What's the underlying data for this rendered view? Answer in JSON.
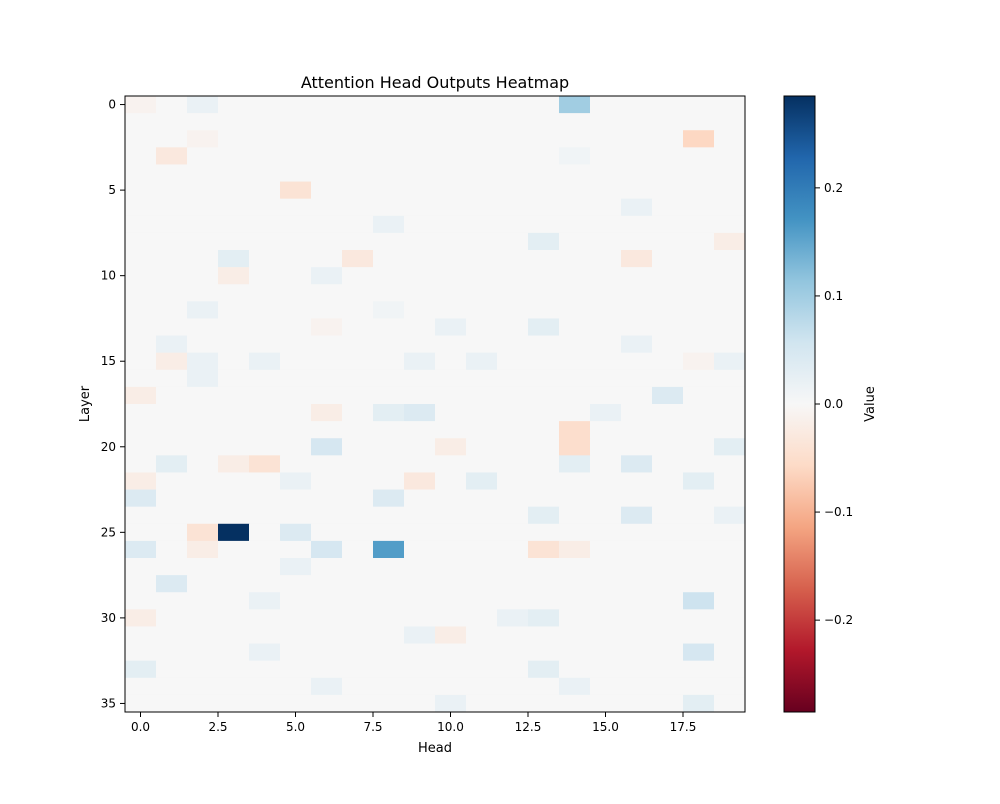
{
  "chart_data": {
    "type": "heatmap",
    "title": "Attention Head Outputs Heatmap",
    "xlabel": "Head",
    "ylabel": "Layer",
    "n_rows": 36,
    "n_cols": 20,
    "xlim": [
      -0.5,
      19.5
    ],
    "ylim": [
      35.5,
      -0.5
    ],
    "x_ticks": [
      0.0,
      2.5,
      5.0,
      7.5,
      10.0,
      12.5,
      15.0,
      17.5
    ],
    "x_tick_labels": [
      "0.0",
      "2.5",
      "5.0",
      "7.5",
      "10.0",
      "12.5",
      "15.0",
      "17.5"
    ],
    "y_ticks": [
      0,
      5,
      10,
      15,
      20,
      25,
      30,
      35
    ],
    "y_tick_labels": [
      "0",
      "5",
      "10",
      "15",
      "20",
      "25",
      "30",
      "35"
    ],
    "colormap": "RdBu",
    "vmin": -0.285,
    "vmax": 0.285,
    "colorbar": {
      "label": "Value",
      "ticks": [
        0.2,
        0.1,
        0.0,
        -0.1,
        -0.2
      ],
      "tick_labels": [
        "0.2",
        "0.1",
        "0.0",
        "−0.1",
        "−0.2"
      ]
    },
    "grid": false,
    "default_value": 0.0,
    "cells": [
      {
        "row": 0,
        "col": 0,
        "value": -0.01
      },
      {
        "row": 0,
        "col": 2,
        "value": 0.02
      },
      {
        "row": 0,
        "col": 14,
        "value": 0.1
      },
      {
        "row": 2,
        "col": 2,
        "value": -0.01
      },
      {
        "row": 2,
        "col": 18,
        "value": -0.06
      },
      {
        "row": 3,
        "col": 1,
        "value": -0.03
      },
      {
        "row": 3,
        "col": 14,
        "value": 0.01
      },
      {
        "row": 5,
        "col": 5,
        "value": -0.04
      },
      {
        "row": 6,
        "col": 16,
        "value": 0.02
      },
      {
        "row": 7,
        "col": 8,
        "value": 0.02
      },
      {
        "row": 8,
        "col": 13,
        "value": 0.03
      },
      {
        "row": 8,
        "col": 19,
        "value": -0.02
      },
      {
        "row": 9,
        "col": 3,
        "value": 0.03
      },
      {
        "row": 9,
        "col": 7,
        "value": -0.03
      },
      {
        "row": 9,
        "col": 16,
        "value": -0.03
      },
      {
        "row": 10,
        "col": 3,
        "value": -0.02
      },
      {
        "row": 10,
        "col": 6,
        "value": 0.02
      },
      {
        "row": 12,
        "col": 2,
        "value": 0.02
      },
      {
        "row": 12,
        "col": 8,
        "value": 0.01
      },
      {
        "row": 13,
        "col": 6,
        "value": -0.01
      },
      {
        "row": 13,
        "col": 10,
        "value": 0.02
      },
      {
        "row": 13,
        "col": 13,
        "value": 0.03
      },
      {
        "row": 14,
        "col": 1,
        "value": 0.02
      },
      {
        "row": 14,
        "col": 16,
        "value": 0.02
      },
      {
        "row": 15,
        "col": 1,
        "value": -0.02
      },
      {
        "row": 15,
        "col": 2,
        "value": 0.02
      },
      {
        "row": 15,
        "col": 4,
        "value": 0.02
      },
      {
        "row": 15,
        "col": 9,
        "value": 0.02
      },
      {
        "row": 15,
        "col": 11,
        "value": 0.02
      },
      {
        "row": 15,
        "col": 18,
        "value": -0.01
      },
      {
        "row": 15,
        "col": 19,
        "value": 0.02
      },
      {
        "row": 16,
        "col": 2,
        "value": 0.02
      },
      {
        "row": 17,
        "col": 0,
        "value": -0.02
      },
      {
        "row": 17,
        "col": 17,
        "value": 0.04
      },
      {
        "row": 18,
        "col": 6,
        "value": -0.02
      },
      {
        "row": 18,
        "col": 8,
        "value": 0.03
      },
      {
        "row": 18,
        "col": 9,
        "value": 0.04
      },
      {
        "row": 18,
        "col": 15,
        "value": 0.02
      },
      {
        "row": 19,
        "col": 14,
        "value": -0.05
      },
      {
        "row": 20,
        "col": 6,
        "value": 0.05
      },
      {
        "row": 20,
        "col": 10,
        "value": -0.02
      },
      {
        "row": 20,
        "col": 14,
        "value": -0.05
      },
      {
        "row": 20,
        "col": 19,
        "value": 0.03
      },
      {
        "row": 21,
        "col": 1,
        "value": 0.03
      },
      {
        "row": 21,
        "col": 3,
        "value": -0.02
      },
      {
        "row": 21,
        "col": 4,
        "value": -0.04
      },
      {
        "row": 21,
        "col": 14,
        "value": 0.03
      },
      {
        "row": 21,
        "col": 16,
        "value": 0.04
      },
      {
        "row": 22,
        "col": 0,
        "value": -0.02
      },
      {
        "row": 22,
        "col": 5,
        "value": 0.02
      },
      {
        "row": 22,
        "col": 9,
        "value": -0.03
      },
      {
        "row": 22,
        "col": 11,
        "value": 0.03
      },
      {
        "row": 22,
        "col": 18,
        "value": 0.03
      },
      {
        "row": 23,
        "col": 0,
        "value": 0.04
      },
      {
        "row": 23,
        "col": 8,
        "value": 0.04
      },
      {
        "row": 24,
        "col": 13,
        "value": 0.03
      },
      {
        "row": 24,
        "col": 16,
        "value": 0.04
      },
      {
        "row": 24,
        "col": 19,
        "value": 0.02
      },
      {
        "row": 25,
        "col": 2,
        "value": -0.04
      },
      {
        "row": 25,
        "col": 3,
        "value": 0.285
      },
      {
        "row": 25,
        "col": 5,
        "value": 0.04
      },
      {
        "row": 26,
        "col": 0,
        "value": 0.04
      },
      {
        "row": 26,
        "col": 2,
        "value": -0.02
      },
      {
        "row": 26,
        "col": 6,
        "value": 0.05
      },
      {
        "row": 26,
        "col": 8,
        "value": 0.16
      },
      {
        "row": 26,
        "col": 13,
        "value": -0.04
      },
      {
        "row": 26,
        "col": 14,
        "value": -0.02
      },
      {
        "row": 27,
        "col": 5,
        "value": 0.02
      },
      {
        "row": 28,
        "col": 1,
        "value": 0.04
      },
      {
        "row": 29,
        "col": 4,
        "value": 0.02
      },
      {
        "row": 29,
        "col": 18,
        "value": 0.06
      },
      {
        "row": 30,
        "col": 0,
        "value": -0.02
      },
      {
        "row": 30,
        "col": 12,
        "value": 0.02
      },
      {
        "row": 30,
        "col": 13,
        "value": 0.03
      },
      {
        "row": 31,
        "col": 9,
        "value": 0.02
      },
      {
        "row": 31,
        "col": 10,
        "value": -0.02
      },
      {
        "row": 32,
        "col": 4,
        "value": 0.02
      },
      {
        "row": 32,
        "col": 18,
        "value": 0.05
      },
      {
        "row": 33,
        "col": 0,
        "value": 0.03
      },
      {
        "row": 33,
        "col": 13,
        "value": 0.03
      },
      {
        "row": 34,
        "col": 6,
        "value": 0.02
      },
      {
        "row": 34,
        "col": 14,
        "value": 0.02
      },
      {
        "row": 35,
        "col": 10,
        "value": 0.02
      },
      {
        "row": 35,
        "col": 18,
        "value": 0.03
      }
    ]
  }
}
